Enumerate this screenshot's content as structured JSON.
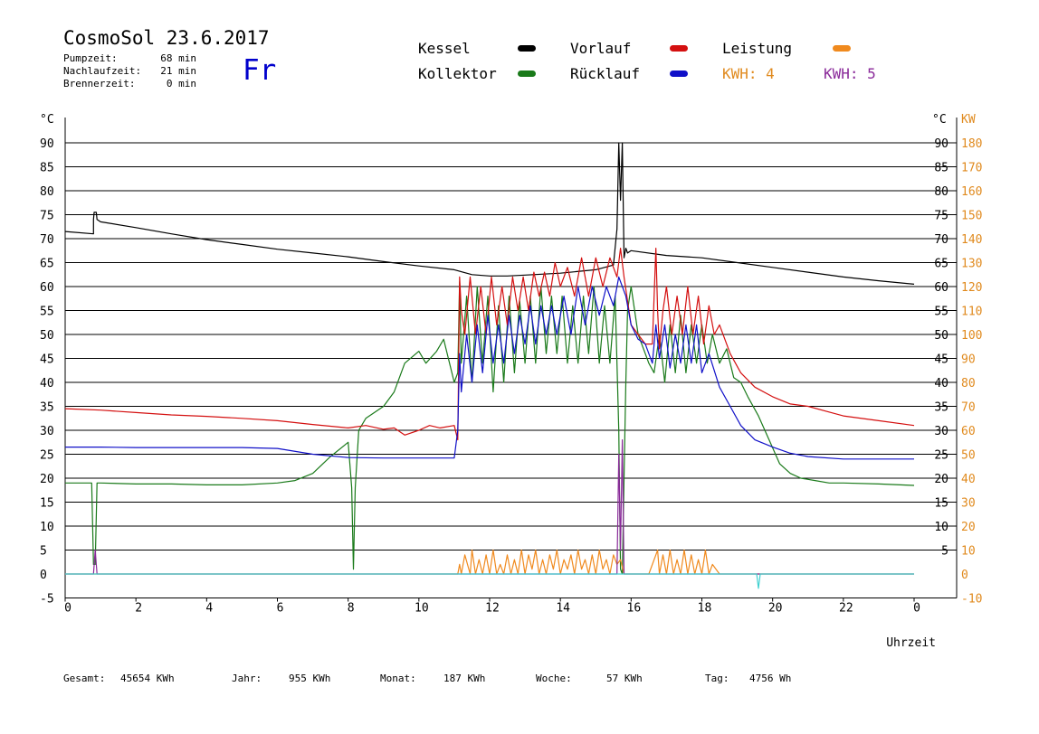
{
  "header": {
    "title": "CosmoSol 23.6.2017",
    "pumpzeit_label": "Pumpzeit:",
    "pumpzeit_value": "68 min",
    "nachlauf_label": "Nachlaufzeit:",
    "nachlauf_value": "21 min",
    "brenner_label": "Brennerzeit:",
    "brenner_value": "0 min",
    "day": "Fr"
  },
  "legend": {
    "kessel": "Kessel",
    "kollektor": "Kollektor",
    "vorlauf": "Vorlauf",
    "ruecklauf": "Rücklauf",
    "leistung": "Leistung",
    "kwh4": "KWH: 4",
    "kwh5": "KWH: 5"
  },
  "footer": {
    "gesamt_label": "Gesamt:",
    "gesamt_value": "45654 KWh",
    "jahr_label": "Jahr:",
    "jahr_value": "955 KWh",
    "monat_label": "Monat:",
    "monat_value": "187 KWh",
    "woche_label": "Woche:",
    "woche_value": "57 KWh",
    "tag_label": "Tag:",
    "tag_value": "4756 Wh"
  },
  "colors": {
    "kessel": "#000000",
    "kollektor": "#1a7a1a",
    "vorlauf": "#d41010",
    "ruecklauf": "#1010c8",
    "leistung": "#f08a1e",
    "kwh5": "#8a2a9a",
    "baseline": "#40d0d0"
  },
  "chart_data": {
    "type": "line",
    "xlabel": "Uhrzeit",
    "ylabel_left": "°C",
    "ylabel_right_unit1": "°C",
    "ylabel_right_unit2": "KW",
    "xlim": [
      0,
      24
    ],
    "ylim": [
      -5,
      90
    ],
    "y2lim": [
      -10,
      180
    ],
    "x_ticks": [
      "0",
      "2",
      "4",
      "6",
      "8",
      "10",
      "12",
      "14",
      "16",
      "18",
      "20",
      "22",
      "0"
    ],
    "y_ticks": [
      -5,
      0,
      5,
      10,
      15,
      20,
      25,
      30,
      35,
      40,
      45,
      50,
      55,
      60,
      65,
      70,
      75,
      80,
      85,
      90
    ],
    "y_right_ticks": [
      5,
      10,
      15,
      20,
      25,
      30,
      35,
      40,
      45,
      50,
      55,
      60,
      65,
      70,
      75,
      80,
      85,
      90
    ],
    "y2_ticks": [
      -10,
      0,
      10,
      20,
      30,
      40,
      50,
      60,
      70,
      80,
      90,
      100,
      110,
      120,
      130,
      140,
      150,
      160,
      170,
      180
    ],
    "series": [
      {
        "name": "Kessel",
        "key": "kessel",
        "x": [
          0,
          0.8,
          0.8,
          0.82,
          0.88,
          0.9,
          1,
          2,
          3,
          4,
          5,
          6,
          7,
          8,
          9,
          10,
          11,
          11.5,
          12,
          12.5,
          13,
          14,
          15,
          15.5,
          15.6,
          15.65,
          15.7,
          15.75,
          15.8,
          15.85,
          15.9,
          16,
          17,
          18,
          19,
          20,
          21,
          22,
          23,
          24
        ],
        "y": [
          71.5,
          71,
          74,
          75.5,
          75.5,
          74,
          73.5,
          72.3,
          71,
          69.8,
          68.8,
          67.8,
          67,
          66.2,
          65.2,
          64.3,
          63.5,
          62.5,
          62.2,
          62.2,
          62.4,
          62.8,
          63.5,
          64.5,
          72,
          90,
          78,
          90,
          66,
          68,
          67,
          67.5,
          66.5,
          66,
          65,
          64,
          63,
          62,
          61.2,
          60.5
        ]
      },
      {
        "name": "Kollektor",
        "key": "kollektor",
        "x": [
          0,
          0.75,
          0.8,
          0.85,
          0.9,
          1,
          2,
          3,
          4,
          5,
          6,
          6.5,
          7,
          7.5,
          8,
          8.1,
          8.15,
          8.2,
          8.3,
          8.5,
          9,
          9.3,
          9.6,
          10,
          10.2,
          10.5,
          10.7,
          11,
          11.1,
          11.15,
          11.2,
          11.35,
          11.5,
          11.65,
          11.8,
          11.95,
          12.1,
          12.25,
          12.4,
          12.55,
          12.7,
          12.85,
          13,
          13.15,
          13.3,
          13.45,
          13.6,
          13.75,
          13.9,
          14.05,
          14.2,
          14.35,
          14.5,
          14.65,
          14.8,
          14.95,
          15.1,
          15.25,
          15.4,
          15.55,
          15.65,
          15.7,
          15.75,
          15.8,
          15.85,
          15.9,
          16,
          16.2,
          16.5,
          16.65,
          16.8,
          16.95,
          17.1,
          17.25,
          17.4,
          17.55,
          17.7,
          17.85,
          18,
          18.15,
          18.3,
          18.5,
          18.7,
          18.9,
          19.1,
          19.3,
          19.6,
          19.9,
          20.2,
          20.5,
          20.8,
          21.2,
          21.6,
          22,
          23,
          24
        ],
        "y": [
          19,
          19,
          2,
          2,
          19,
          19,
          18.8,
          18.8,
          18.6,
          18.6,
          19,
          19.5,
          21,
          24.5,
          27.5,
          18,
          1,
          18,
          30,
          32.5,
          35,
          38,
          44,
          46.5,
          44,
          46.5,
          49,
          40,
          42,
          61,
          44,
          58,
          40,
          60,
          44,
          58,
          38,
          56,
          40,
          58,
          42,
          57,
          44,
          58,
          44,
          60,
          46,
          58,
          46,
          58,
          44,
          56,
          44,
          58,
          46,
          60,
          44,
          56,
          44,
          58,
          30,
          1,
          0,
          20,
          40,
          55,
          60,
          50,
          44,
          42,
          50,
          40,
          52,
          42,
          54,
          42,
          52,
          44,
          52,
          44,
          50,
          44,
          47,
          41,
          40,
          37,
          33,
          28,
          23,
          21,
          20,
          19.5,
          19,
          19,
          18.8,
          18.5
        ]
      },
      {
        "name": "Vorlauf",
        "key": "vorlauf",
        "x": [
          0,
          1,
          2,
          3,
          4,
          5,
          6,
          7,
          8,
          8.5,
          9,
          9.3,
          9.6,
          10,
          10.3,
          10.6,
          11,
          11.1,
          11.15,
          11.2,
          11.3,
          11.45,
          11.6,
          11.75,
          11.9,
          12.05,
          12.2,
          12.35,
          12.5,
          12.65,
          12.8,
          12.95,
          13.1,
          13.25,
          13.4,
          13.55,
          13.7,
          13.85,
          14,
          14.2,
          14.4,
          14.6,
          14.8,
          15,
          15.2,
          15.4,
          15.6,
          15.7,
          15.8,
          16,
          16.2,
          16.4,
          16.6,
          16.7,
          16.75,
          16.8,
          16.9,
          17,
          17.15,
          17.3,
          17.45,
          17.6,
          17.75,
          17.9,
          18.05,
          18.2,
          18.35,
          18.5,
          18.8,
          19.1,
          19.5,
          20,
          20.5,
          21,
          21.5,
          22,
          23,
          24
        ],
        "y": [
          34.5,
          34.2,
          33.7,
          33.2,
          32.9,
          32.5,
          32,
          31.2,
          30.5,
          31,
          30.2,
          30.5,
          29,
          30,
          31,
          30.5,
          31,
          28,
          62,
          55,
          50,
          62,
          50,
          60,
          50,
          62,
          52,
          60,
          52,
          62,
          55,
          62,
          55,
          63,
          58,
          63,
          58,
          65,
          60,
          64,
          58,
          66,
          58,
          66,
          60,
          66,
          62,
          68,
          62,
          52,
          50,
          48,
          48,
          68,
          55,
          47,
          55,
          60,
          50,
          58,
          50,
          60,
          50,
          58,
          48,
          56,
          50,
          52,
          46,
          42,
          39,
          37,
          35.5,
          35,
          34,
          33,
          32,
          31
        ]
      },
      {
        "name": "Rücklauf",
        "key": "ruecklauf",
        "x": [
          0,
          1,
          2,
          3,
          4,
          5,
          6,
          7,
          8,
          9,
          10,
          11,
          11.1,
          11.15,
          11.2,
          11.35,
          11.5,
          11.65,
          11.8,
          11.95,
          12.1,
          12.25,
          12.4,
          12.55,
          12.7,
          12.85,
          13,
          13.15,
          13.3,
          13.45,
          13.6,
          13.75,
          13.9,
          14.1,
          14.3,
          14.5,
          14.7,
          14.9,
          15.1,
          15.3,
          15.5,
          15.65,
          15.75,
          15.85,
          16,
          16.2,
          16.4,
          16.6,
          16.7,
          16.8,
          16.95,
          17.1,
          17.25,
          17.4,
          17.55,
          17.7,
          17.85,
          18,
          18.2,
          18.5,
          18.8,
          19.1,
          19.5,
          20,
          20.5,
          21,
          22,
          23,
          24
        ],
        "y": [
          26.5,
          26.5,
          26.4,
          26.4,
          26.4,
          26.4,
          26.2,
          25,
          24.3,
          24.2,
          24.2,
          24.2,
          30,
          46,
          38,
          50,
          40,
          52,
          42,
          54,
          44,
          52,
          44,
          54,
          46,
          54,
          48,
          56,
          48,
          56,
          50,
          56,
          50,
          58,
          50,
          60,
          52,
          60,
          54,
          60,
          56,
          62,
          60,
          58,
          52,
          49,
          48,
          44,
          52,
          45,
          52,
          43,
          50,
          44,
          52,
          44,
          52,
          42,
          46,
          39,
          35,
          31,
          28,
          26.5,
          25.2,
          24.5,
          24,
          24,
          24
        ]
      },
      {
        "name": "Leistung",
        "key": "leistung",
        "x": [
          0,
          11.1,
          11.15,
          11.2,
          11.3,
          11.45,
          11.5,
          11.6,
          11.7,
          11.8,
          11.9,
          12,
          12.1,
          12.2,
          12.3,
          12.4,
          12.5,
          12.6,
          12.7,
          12.8,
          12.9,
          13,
          13.1,
          13.2,
          13.3,
          13.4,
          13.5,
          13.6,
          13.7,
          13.8,
          13.9,
          14,
          14.1,
          14.2,
          14.3,
          14.4,
          14.5,
          14.6,
          14.7,
          14.8,
          14.9,
          15,
          15.1,
          15.2,
          15.3,
          15.4,
          15.5,
          15.6,
          15.7,
          15.8,
          16,
          16.5,
          16.7,
          16.75,
          16.8,
          16.9,
          17,
          17.1,
          17.2,
          17.3,
          17.4,
          17.5,
          17.6,
          17.7,
          17.8,
          17.9,
          18,
          18.1,
          18.2,
          18.3,
          18.5,
          24
        ],
        "y": [
          0,
          0,
          2,
          0,
          4,
          0,
          5,
          0,
          3,
          0,
          4,
          0,
          5,
          0,
          2,
          0,
          4,
          0,
          3,
          0,
          5,
          0,
          4,
          1,
          5,
          0,
          3,
          0,
          4,
          1,
          5,
          0,
          3,
          1,
          4,
          0,
          5,
          1,
          3,
          0,
          4,
          0,
          5,
          1,
          3,
          0,
          4,
          2,
          3,
          0,
          0,
          0,
          4,
          5,
          0,
          4,
          0,
          5,
          0,
          3,
          0,
          5,
          0,
          4,
          0,
          3,
          0,
          5,
          0,
          2,
          0,
          0
        ]
      },
      {
        "name": "KWH: 5",
        "key": "kwh5",
        "x": [
          0,
          0.8,
          0.85,
          0.9,
          1,
          15.6,
          15.65,
          15.7,
          15.75,
          15.8,
          24
        ],
        "y": [
          0,
          0,
          5,
          0,
          0,
          0,
          25,
          5,
          28,
          0,
          0
        ]
      },
      {
        "name": "baseline",
        "key": "baseline",
        "x": [
          0,
          19.55,
          19.6,
          19.65,
          24
        ],
        "y": [
          0,
          0,
          -3,
          0,
          0
        ]
      }
    ]
  }
}
